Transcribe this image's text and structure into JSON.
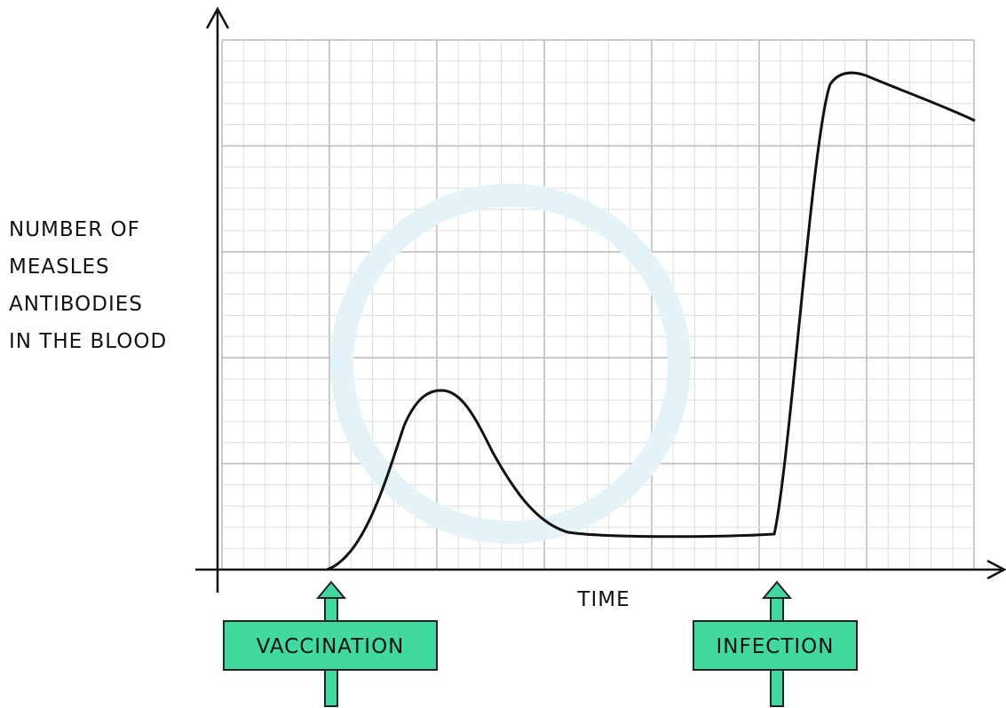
{
  "y_axis_label": [
    "NUMBER  OF",
    "MEASLES",
    "ANTIBODIES",
    "IN  THE BLOOD"
  ],
  "x_axis_label": "TIME",
  "annotations": [
    "VACCINATION",
    "INFECTION"
  ]
}
